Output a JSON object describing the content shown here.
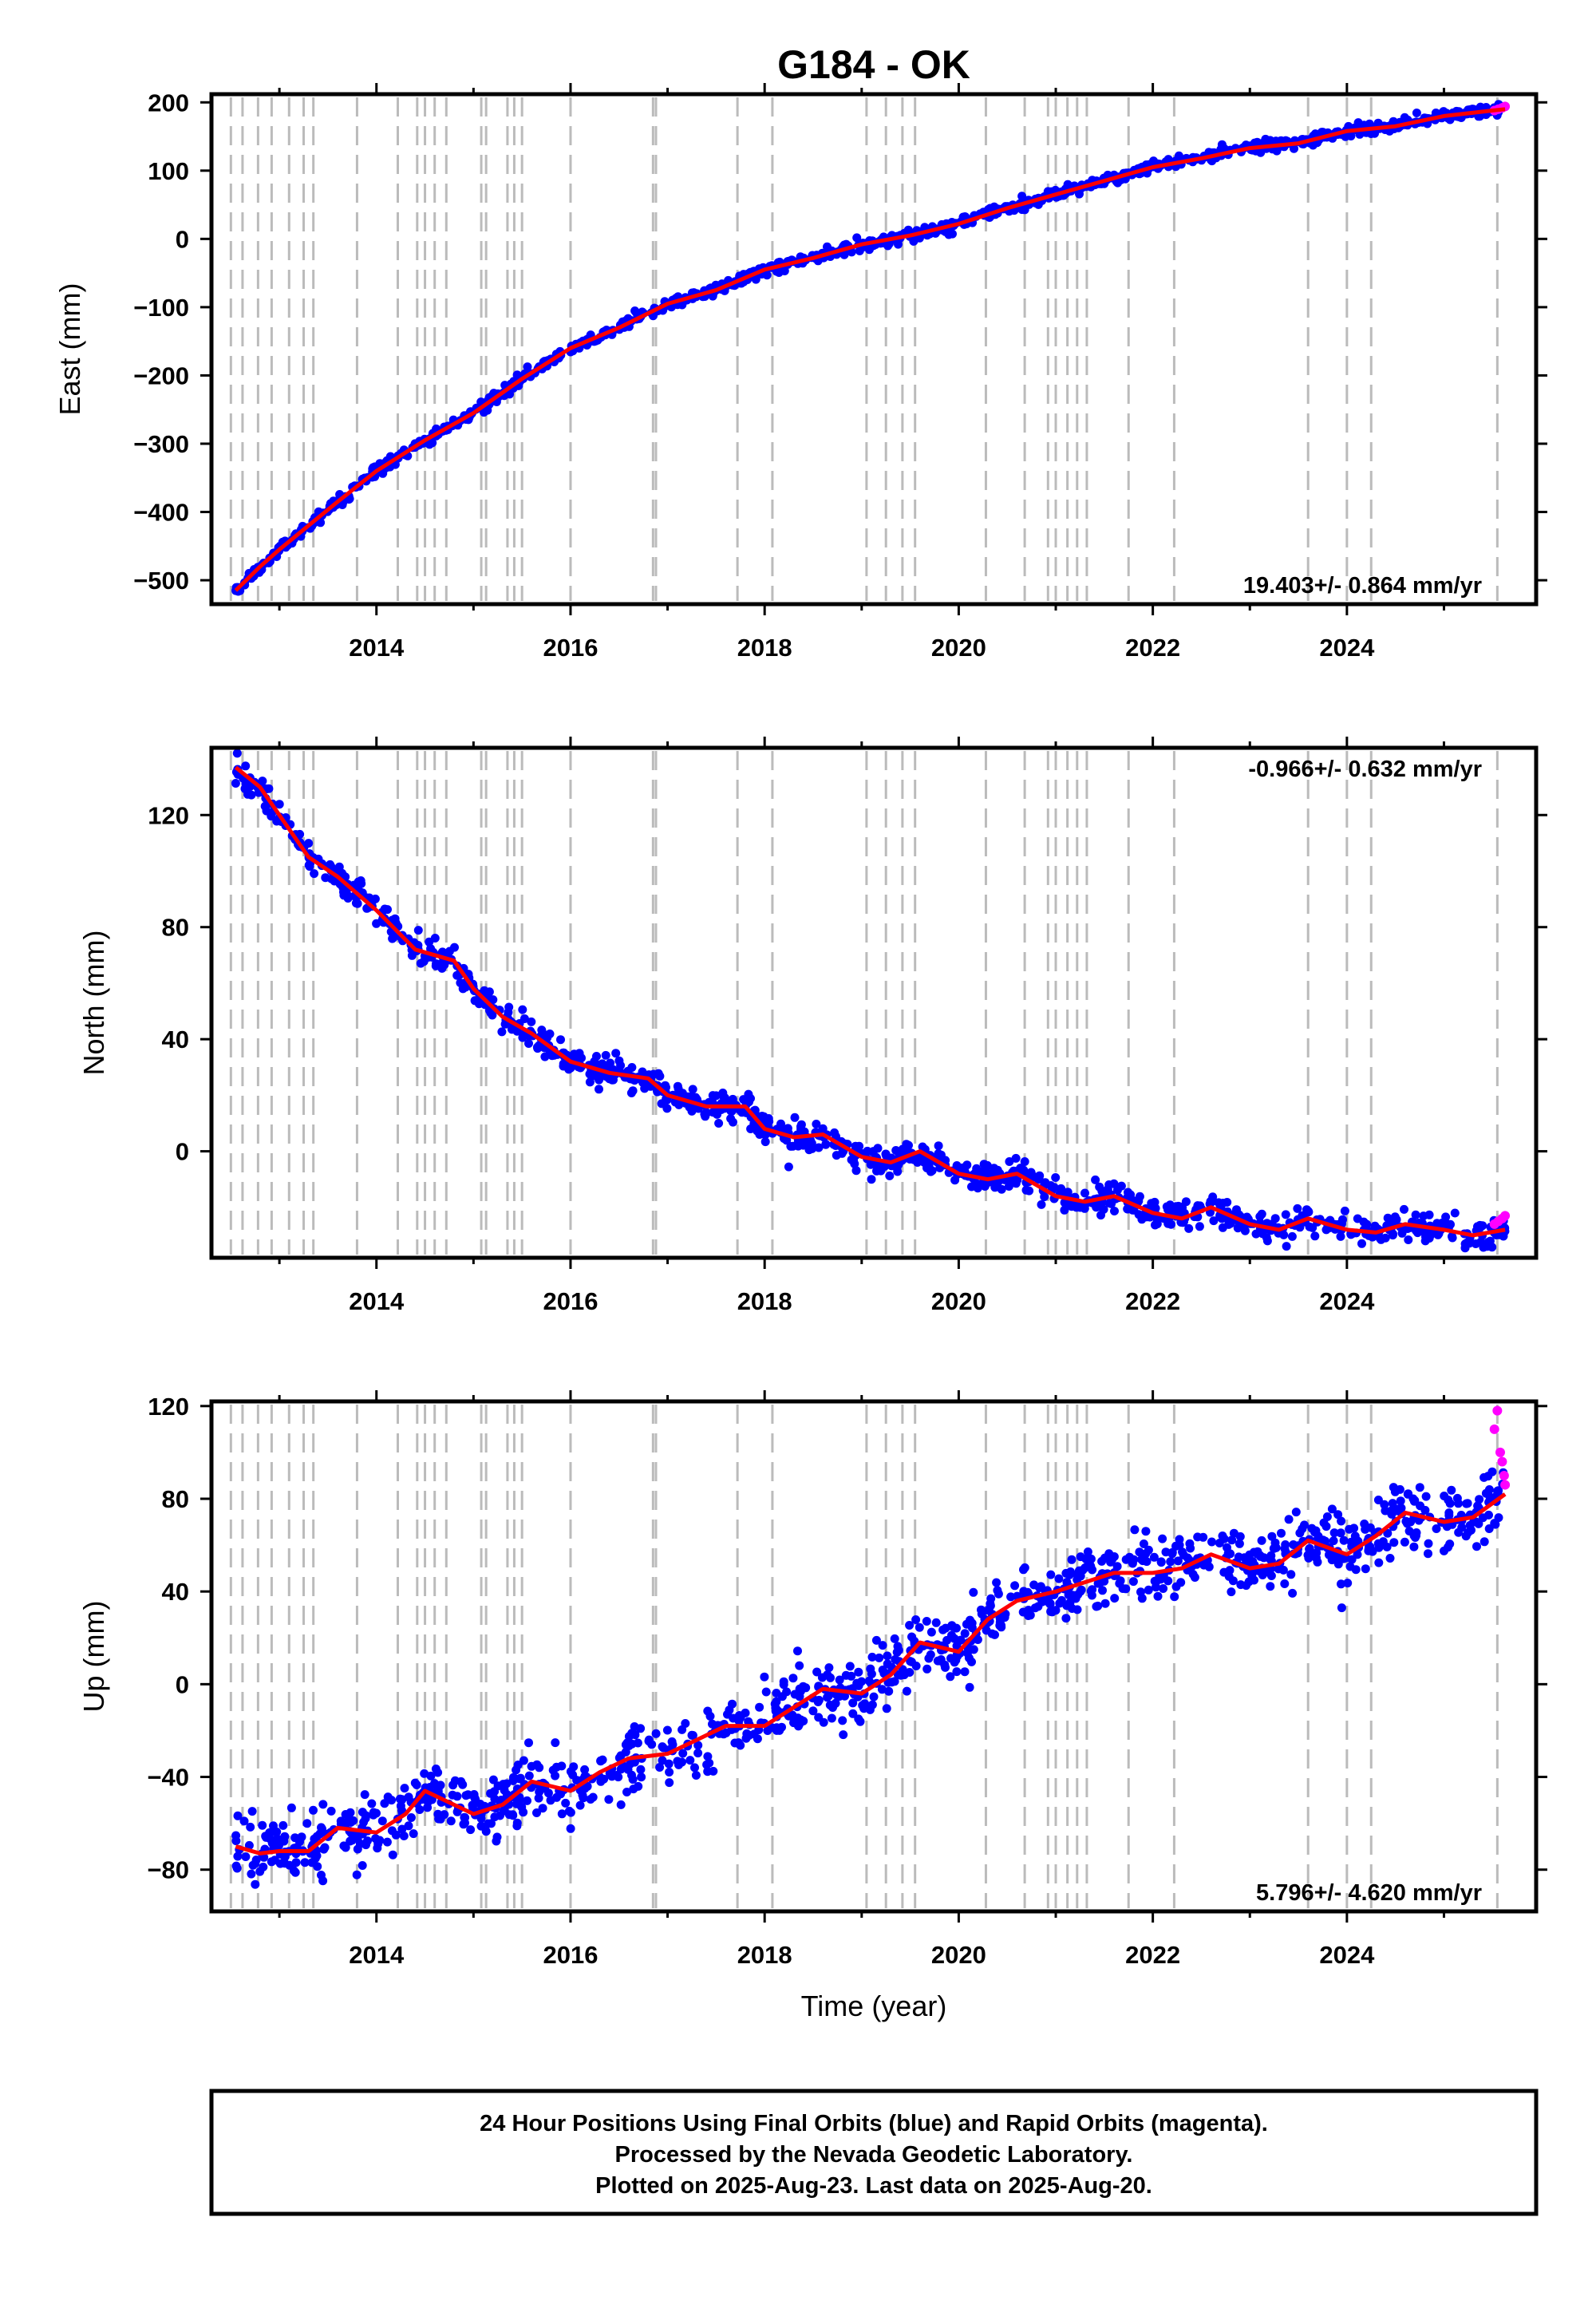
{
  "title": "G184 - OK",
  "footer_lines": [
    "24 Hour Positions Using Final Orbits (blue) and Rapid Orbits (magenta).",
    "Processed by the Nevada Geodetic Laboratory.",
    "Plotted on 2025-Aug-23. Last data on 2025-Aug-20."
  ],
  "colors": {
    "final_orbits": "#0000ff",
    "rapid_orbits": "#ff00ff",
    "model_fit": "#ff0000",
    "event_lines": "#bbbbbb"
  },
  "chart_data": [
    {
      "type": "scatter",
      "component": "east",
      "title": "G184 - OK",
      "xlabel": "",
      "ylabel": "East (mm)",
      "xlim": [
        2012.3,
        2025.95
      ],
      "ylim": [
        -535,
        212
      ],
      "x_ticks": [
        2014,
        2016,
        2018,
        2020,
        2022,
        2024
      ],
      "y_ticks": [
        -500,
        -400,
        -300,
        -200,
        -100,
        0,
        100,
        200
      ],
      "y_tick_labels": [
        "−500",
        "−400",
        "−300",
        "−200",
        "−100",
        "0",
        "100",
        "200"
      ],
      "rate_label": "19.403+/- 0.864 mm/yr",
      "rate_position": "bottom-right",
      "model_fit": {
        "x": [
          2012.55,
          2012.8,
          2013.0,
          2013.3,
          2013.6,
          2014.0,
          2014.5,
          2015.0,
          2015.5,
          2016.0,
          2016.5,
          2017.0,
          2017.5,
          2018.0,
          2018.5,
          2019.0,
          2019.5,
          2020.0,
          2020.5,
          2021.0,
          2021.5,
          2022.0,
          2022.5,
          2023.0,
          2023.5,
          2024.0,
          2024.5,
          2025.0,
          2025.5,
          2025.63
        ],
        "y": [
          -515,
          -480,
          -455,
          -420,
          -385,
          -340,
          -295,
          -255,
          -205,
          -160,
          -130,
          -95,
          -75,
          -45,
          -28,
          -8,
          5,
          22,
          45,
          65,
          85,
          105,
          118,
          133,
          140,
          158,
          165,
          180,
          188,
          190
        ]
      },
      "scatter_noise_mm": 4,
      "rapid_points": {
        "x": [
          2025.52,
          2025.56,
          2025.6,
          2025.63
        ],
        "y": [
          188,
          190,
          192,
          194
        ]
      }
    },
    {
      "type": "scatter",
      "component": "north",
      "title": "",
      "xlabel": "",
      "ylabel": "North (mm)",
      "xlim": [
        2012.3,
        2025.95
      ],
      "ylim": [
        -38,
        144
      ],
      "x_ticks": [
        2014,
        2016,
        2018,
        2020,
        2022,
        2024
      ],
      "y_ticks": [
        0,
        40,
        80,
        120
      ],
      "y_tick_labels": [
        "0",
        "40",
        "80",
        "120"
      ],
      "rate_label": "-0.966+/- 0.632 mm/yr",
      "rate_position": "top-right",
      "model_fit": {
        "x": [
          2012.55,
          2012.8,
          2013.0,
          2013.3,
          2013.6,
          2014.0,
          2014.4,
          2014.8,
          2015.0,
          2015.3,
          2015.6,
          2016.0,
          2016.4,
          2016.8,
          2017.0,
          2017.4,
          2017.8,
          2018.0,
          2018.3,
          2018.6,
          2019.0,
          2019.3,
          2019.6,
          2020.0,
          2020.3,
          2020.6,
          2021.0,
          2021.3,
          2021.6,
          2022.0,
          2022.3,
          2022.6,
          2023.0,
          2023.3,
          2023.6,
          2024.0,
          2024.3,
          2024.6,
          2025.0,
          2025.3,
          2025.63
        ],
        "y": [
          137,
          130,
          120,
          105,
          98,
          86,
          72,
          68,
          58,
          48,
          42,
          32,
          28,
          26,
          20,
          16,
          16,
          8,
          5,
          6,
          -2,
          -4,
          0,
          -8,
          -10,
          -8,
          -16,
          -18,
          -16,
          -22,
          -24,
          -20,
          -26,
          -28,
          -24,
          -28,
          -29,
          -26,
          -28,
          -30,
          -28
        ]
      },
      "scatter_noise_mm": 2.5,
      "rapid_points": {
        "x": [
          2025.52,
          2025.56,
          2025.6,
          2025.63
        ],
        "y": [
          -26,
          -25,
          -24,
          -23
        ]
      }
    },
    {
      "type": "scatter",
      "component": "up",
      "title": "",
      "xlabel": "Time (year)",
      "ylabel": "Up (mm)",
      "xlim": [
        2012.3,
        2025.95
      ],
      "ylim": [
        -98,
        122
      ],
      "x_ticks": [
        2014,
        2016,
        2018,
        2020,
        2022,
        2024
      ],
      "x_tick_labels": [
        "2014",
        "2016",
        "2018",
        "2020",
        "2022",
        "2024"
      ],
      "y_ticks": [
        -80,
        -40,
        0,
        40,
        80,
        120
      ],
      "y_tick_labels": [
        "−80",
        "−40",
        "0",
        "40",
        "80",
        "120"
      ],
      "rate_label": "5.796+/- 4.620 mm/yr",
      "rate_position": "bottom-right",
      "model_fit": {
        "x": [
          2012.55,
          2012.8,
          2013.0,
          2013.3,
          2013.6,
          2014.0,
          2014.3,
          2014.5,
          2014.8,
          2015.0,
          2015.3,
          2015.6,
          2016.0,
          2016.3,
          2016.6,
          2017.0,
          2017.3,
          2017.6,
          2018.0,
          2018.3,
          2018.6,
          2019.0,
          2019.3,
          2019.6,
          2020.0,
          2020.3,
          2020.6,
          2021.0,
          2021.3,
          2021.6,
          2022.0,
          2022.3,
          2022.6,
          2023.0,
          2023.3,
          2023.6,
          2024.0,
          2024.3,
          2024.6,
          2025.0,
          2025.3,
          2025.63
        ],
        "y": [
          -70,
          -73,
          -72,
          -72,
          -62,
          -64,
          -56,
          -46,
          -52,
          -56,
          -52,
          -42,
          -46,
          -38,
          -32,
          -30,
          -24,
          -18,
          -18,
          -10,
          -2,
          -4,
          4,
          18,
          14,
          28,
          36,
          40,
          44,
          48,
          48,
          50,
          56,
          50,
          52,
          62,
          56,
          64,
          74,
          70,
          72,
          82
        ]
      },
      "scatter_noise_mm": 7,
      "rapid_points": {
        "x": [
          2025.52,
          2025.55,
          2025.58,
          2025.6,
          2025.62,
          2025.63
        ],
        "y": [
          110,
          118,
          100,
          96,
          90,
          86
        ]
      }
    }
  ],
  "event_lines_x": [
    2012.5,
    2012.62,
    2012.78,
    2012.92,
    2013.1,
    2013.25,
    2013.35,
    2013.8,
    2014.22,
    2014.42,
    2014.5,
    2014.6,
    2014.72,
    2015.08,
    2015.13,
    2015.35,
    2015.42,
    2015.5,
    2016.0,
    2016.85,
    2016.88,
    2017.72,
    2018.08,
    2019.05,
    2019.25,
    2019.42,
    2019.55,
    2020.28,
    2020.68,
    2020.92,
    2021.0,
    2021.12,
    2021.22,
    2021.32,
    2021.75,
    2022.22,
    2023.6,
    2024.0,
    2024.25,
    2025.55
  ]
}
